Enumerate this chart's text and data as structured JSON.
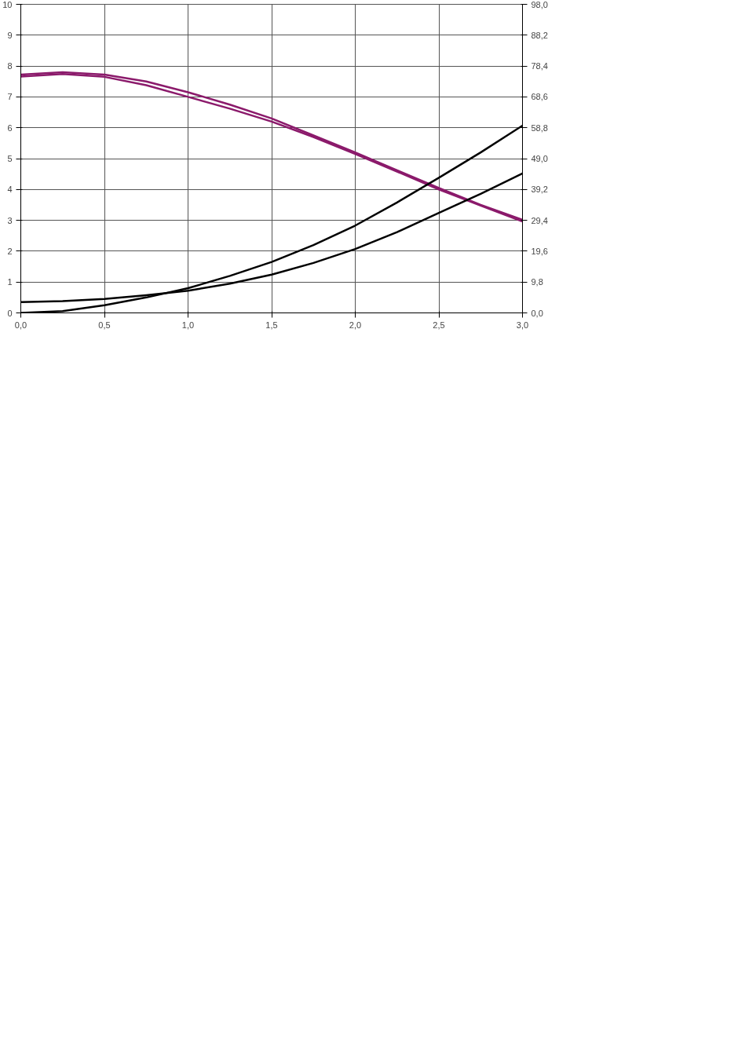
{
  "chart_data": {
    "type": "line",
    "xlim": [
      0,
      3
    ],
    "xticks": [
      {
        "value": 0,
        "label": "0,0"
      },
      {
        "value": 0.5,
        "label": "0,5"
      },
      {
        "value": 1,
        "label": "1,0"
      },
      {
        "value": 1.5,
        "label": "1,5"
      },
      {
        "value": 2,
        "label": "2,0"
      },
      {
        "value": 2.5,
        "label": "2,5"
      },
      {
        "value": 3,
        "label": "3,0"
      }
    ],
    "ylim": [
      0,
      10
    ],
    "yticks": [
      0,
      1,
      2,
      3,
      4,
      5,
      6,
      7,
      8,
      9,
      10
    ],
    "y2lim": [
      0,
      98
    ],
    "y2ticks": [
      {
        "value": 0,
        "label": "0,0"
      },
      {
        "value": 9.8,
        "label": "9,8"
      },
      {
        "value": 19.6,
        "label": "19,6"
      },
      {
        "value": 29.4,
        "label": "29,4"
      },
      {
        "value": 39.2,
        "label": "39,2"
      },
      {
        "value": 49,
        "label": "49,0"
      },
      {
        "value": 58.8,
        "label": "58,8"
      },
      {
        "value": 68.6,
        "label": "68,6"
      },
      {
        "value": 78.4,
        "label": "78,4"
      },
      {
        "value": 88.2,
        "label": "88,2"
      },
      {
        "value": 98,
        "label": "98,0"
      }
    ],
    "x": [
      0,
      0.25,
      0.5,
      0.75,
      1,
      1.25,
      1.5,
      1.75,
      2,
      2.25,
      2.5,
      2.75,
      3
    ],
    "series": [
      {
        "color": "#8b1a6b",
        "values": [
          7.72,
          7.8,
          7.72,
          7.5,
          7.15,
          6.75,
          6.3,
          5.75,
          5.2,
          4.62,
          4.05,
          3.5,
          3.02
        ]
      },
      {
        "color": "#8b1a6b",
        "values": [
          7.66,
          7.74,
          7.65,
          7.38,
          7.0,
          6.62,
          6.2,
          5.7,
          5.15,
          4.58,
          4.0,
          3.48,
          2.96
        ]
      },
      {
        "color": "#000000",
        "values": [
          0,
          0.06,
          0.25,
          0.5,
          0.8,
          1.2,
          1.65,
          2.2,
          2.83,
          3.58,
          4.38,
          5.2,
          6.07
        ]
      },
      {
        "color": "#000000",
        "values": [
          0.35,
          0.38,
          0.45,
          0.57,
          0.72,
          0.95,
          1.24,
          1.62,
          2.07,
          2.62,
          3.24,
          3.86,
          4.52
        ]
      }
    ],
    "grid": true,
    "line_style": "solid",
    "marker": "none"
  }
}
